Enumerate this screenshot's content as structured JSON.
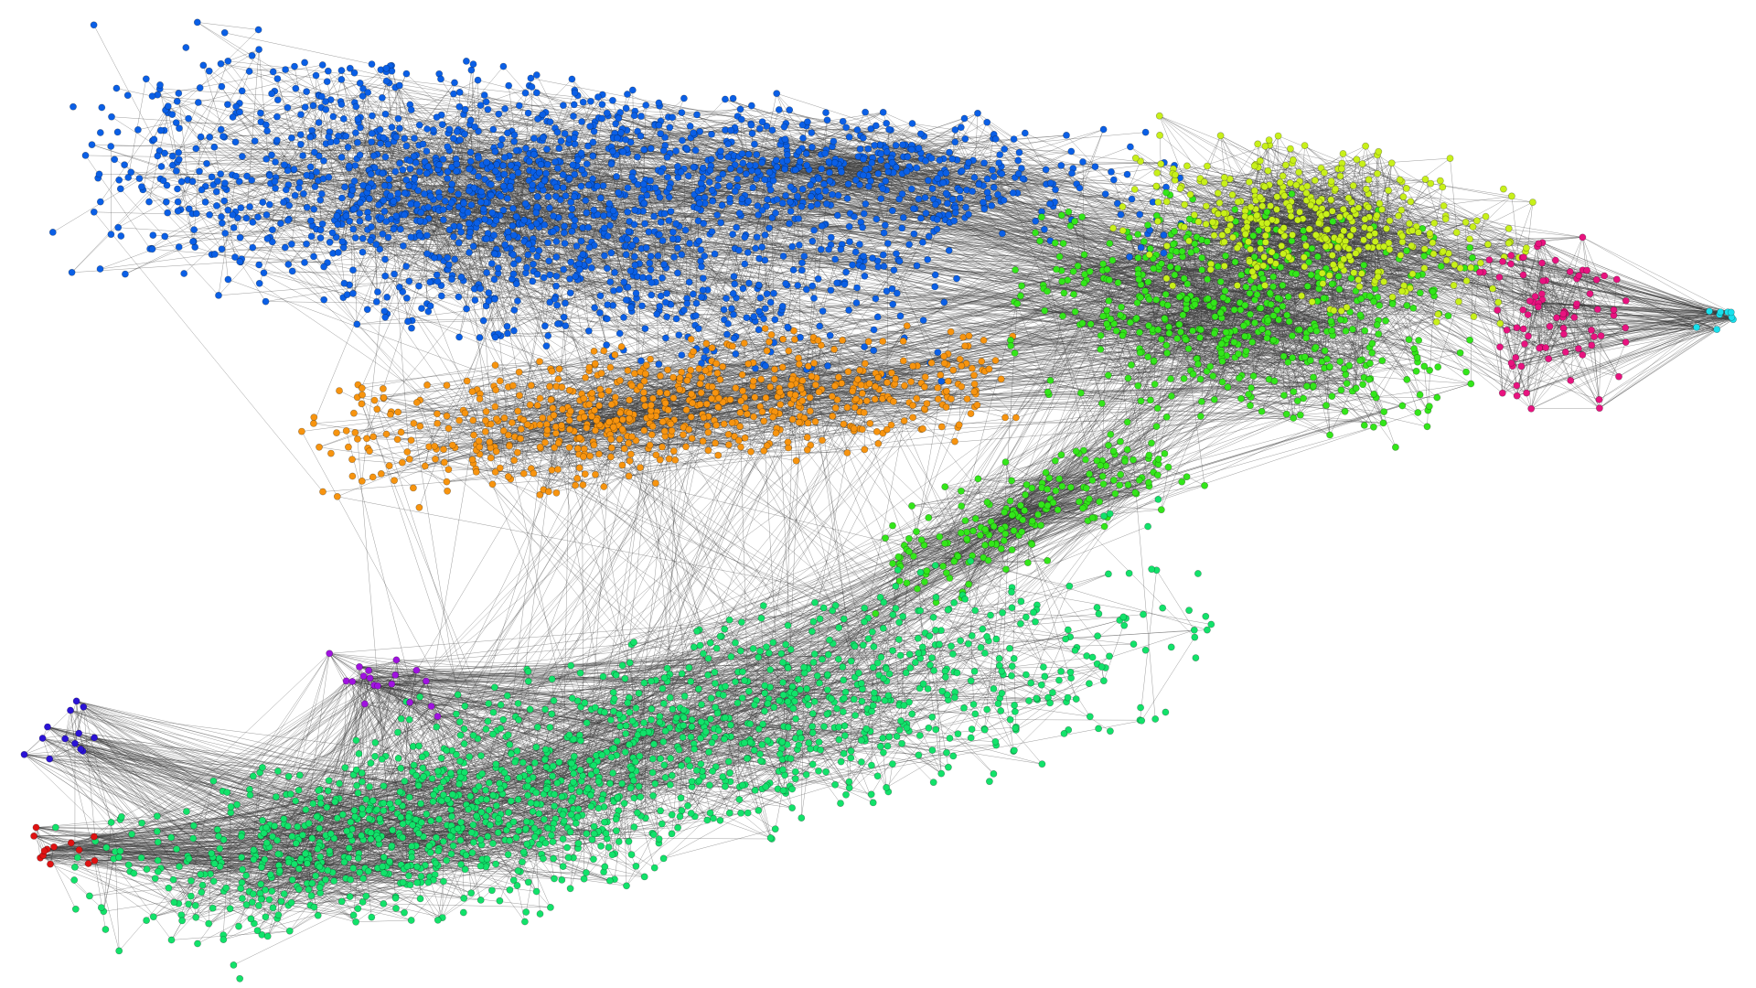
{
  "graph": {
    "background": "#ffffff",
    "edge_color": "#3a3a3a",
    "communities": [
      {
        "name": "blue",
        "color": "#0a5fe6"
      },
      {
        "name": "orange",
        "color": "#f7940f"
      },
      {
        "name": "green",
        "color": "#33e61a"
      },
      {
        "name": "spring-green",
        "color": "#12e26a"
      },
      {
        "name": "yellow-green",
        "color": "#c8f01a"
      },
      {
        "name": "magenta",
        "color": "#e8137f"
      },
      {
        "name": "cyan",
        "color": "#18e0ec"
      },
      {
        "name": "purple",
        "color": "#a012e0"
      },
      {
        "name": "indigo",
        "color": "#2a12d6"
      },
      {
        "name": "red",
        "color": "#e01212"
      }
    ]
  }
}
